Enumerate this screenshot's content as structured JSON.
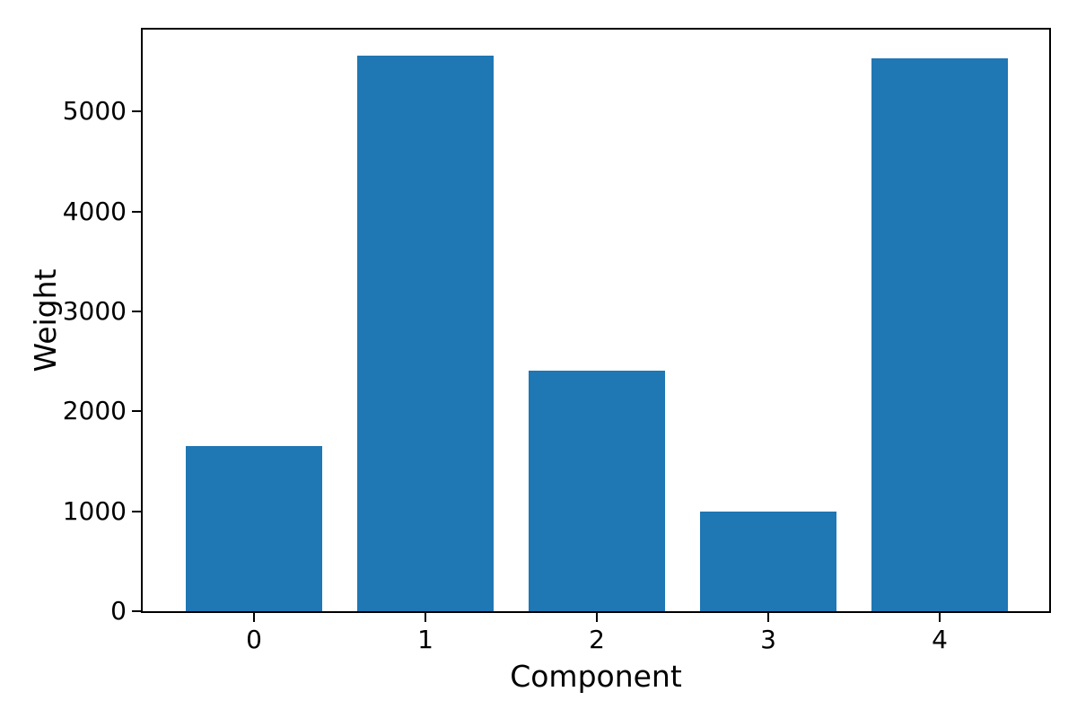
{
  "figure": {
    "background": "#ffffff",
    "spine_color": "#000000",
    "text_color": "#000000"
  },
  "chart_data": {
    "type": "bar",
    "title": "",
    "xlabel": "Component",
    "ylabel": "Weight",
    "categories": [
      "0",
      "1",
      "2",
      "3",
      "4"
    ],
    "values": [
      1650,
      5560,
      2410,
      1000,
      5530
    ],
    "bar_color": "#1f77b4",
    "bar_width": 0.8,
    "xlim": [
      -0.65,
      4.638
    ],
    "ylim": [
      0,
      5820
    ],
    "yticks": [
      0,
      1000,
      2000,
      3000,
      4000,
      5000
    ],
    "ytick_labels": [
      "0",
      "1000",
      "2000",
      "3000",
      "4000",
      "5000"
    ],
    "grid": false,
    "legend_position": "none"
  }
}
